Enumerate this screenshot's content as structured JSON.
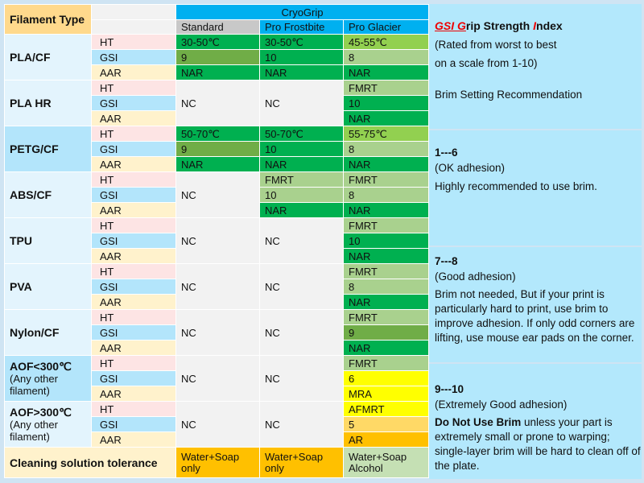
{
  "header": {
    "filament_type": "Filament Type",
    "brand": "CryoGrip",
    "columns": [
      "Standard",
      "Pro Frostbite",
      "Pro Glacier"
    ],
    "column_colors": [
      "#c8c8c8",
      "#00b0f0",
      "#00b0f0"
    ]
  },
  "row_labels": [
    {
      "label": "HT",
      "color": "#fde4e4"
    },
    {
      "label": "GSI",
      "color": "#b3e5fb"
    },
    {
      "label": "AAR",
      "color": "#fff2cc"
    }
  ],
  "groups": [
    {
      "name": "PLA/CF",
      "bg": "#e3f4fd",
      "cols": [
        [
          {
            "v": "30-50℃",
            "c": "#00b050"
          },
          {
            "v": "9",
            "c": "#70ad47"
          },
          {
            "v": "NAR",
            "c": "#00b050"
          }
        ],
        [
          {
            "v": "30-50℃",
            "c": "#00b050"
          },
          {
            "v": "10",
            "c": "#00b050"
          },
          {
            "v": "NAR",
            "c": "#00b050"
          }
        ],
        [
          {
            "v": "45-55℃",
            "c": "#92d050"
          },
          {
            "v": "8",
            "c": "#a9d18e"
          },
          {
            "v": "NAR",
            "c": "#00b050"
          }
        ]
      ]
    },
    {
      "name": "PLA HR",
      "bg": "#e3f4fd",
      "cols": [
        "NC",
        "NC",
        [
          {
            "v": "FMRT",
            "c": "#a9d18e"
          },
          {
            "v": "10",
            "c": "#00b050"
          },
          {
            "v": "NAR",
            "c": "#00b050"
          }
        ]
      ]
    },
    {
      "name": "PETG/CF",
      "bg": "#b3e5fb",
      "cols": [
        [
          {
            "v": "50-70℃",
            "c": "#00b050"
          },
          {
            "v": "9",
            "c": "#70ad47"
          },
          {
            "v": "NAR",
            "c": "#00b050"
          }
        ],
        [
          {
            "v": "50-70℃",
            "c": "#00b050"
          },
          {
            "v": "10",
            "c": "#00b050"
          },
          {
            "v": "NAR",
            "c": "#00b050"
          }
        ],
        [
          {
            "v": "55-75℃",
            "c": "#92d050"
          },
          {
            "v": "8",
            "c": "#a9d18e"
          },
          {
            "v": "NAR",
            "c": "#00b050"
          }
        ]
      ]
    },
    {
      "name": "ABS/CF",
      "bg": "#e3f4fd",
      "cols": [
        "NC",
        [
          {
            "v": "FMRT",
            "c": "#a9d18e"
          },
          {
            "v": "10",
            "c": "#a9d18e"
          },
          {
            "v": "NAR",
            "c": "#00b050"
          }
        ],
        [
          {
            "v": "FMRT",
            "c": "#a9d18e"
          },
          {
            "v": "8",
            "c": "#a9d18e"
          },
          {
            "v": "NAR",
            "c": "#00b050"
          }
        ]
      ]
    },
    {
      "name": "TPU",
      "bg": "#e3f4fd",
      "cols": [
        "NC",
        "NC",
        [
          {
            "v": "FMRT",
            "c": "#a9d18e"
          },
          {
            "v": "10",
            "c": "#00b050"
          },
          {
            "v": "NAR",
            "c": "#00b050"
          }
        ]
      ]
    },
    {
      "name": "PVA",
      "bg": "#e3f4fd",
      "cols": [
        "NC",
        "NC",
        [
          {
            "v": "FMRT",
            "c": "#a9d18e"
          },
          {
            "v": "8",
            "c": "#a9d18e"
          },
          {
            "v": "NAR",
            "c": "#00b050"
          }
        ]
      ]
    },
    {
      "name": "Nylon/CF",
      "bg": "#e3f4fd",
      "cols": [
        "NC",
        "NC",
        [
          {
            "v": "FMRT",
            "c": "#a9d18e"
          },
          {
            "v": "9",
            "c": "#70ad47"
          },
          {
            "v": "NAR",
            "c": "#00b050"
          }
        ]
      ]
    },
    {
      "name": "AOF<300℃",
      "sub": "(Any other filament)",
      "bg": "#b3e5fb",
      "cols": [
        "NC",
        "NC",
        [
          {
            "v": "FMRT",
            "c": "#a9d18e"
          },
          {
            "v": "6",
            "c": "#ffff00"
          },
          {
            "v": "MRA",
            "c": "#ffff00"
          }
        ]
      ]
    },
    {
      "name": "AOF>300℃",
      "sub": "(Any other filament)",
      "bg": "#e3f4fd",
      "cols": [
        "NC",
        "NC",
        [
          {
            "v": "AFMRT",
            "c": "#ffff00"
          },
          {
            "v": "5",
            "c": "#ffd966"
          },
          {
            "v": "AR",
            "c": "#ffc000"
          }
        ]
      ]
    }
  ],
  "cleaning": {
    "label": "Cleaning solution tolerance",
    "values": [
      {
        "v": "Water+Soap only",
        "c": "#ffc000"
      },
      {
        "v": "Water+Soap only",
        "c": "#ffc000"
      },
      {
        "v": "Water+Soap Alcohol",
        "c": "#c5e0b4"
      }
    ]
  },
  "legend": {
    "title_red_1": "GSI G",
    "title_1": "rip Strength ",
    "title_red_2": "I",
    "title_2": "ndex",
    "rated": "(Rated from worst to best",
    "scale": "on a scale from 1-10)",
    "brim_heading": "Brim Setting Recommendation",
    "range1": "1---6",
    "range1_desc": "(OK adhesion)",
    "range1_text": "Highly recommended to use brim.",
    "range2": "7---8",
    "range2_desc": "(Good adhesion)",
    "range2_text": "Brim not needed, But if your print is particularly hard to print, use brim to improve adhesion. If only odd corners are lifting, use mouse ear pads on the corner.",
    "range3": "9---10",
    "range3_desc": "(Extremely Good adhesion)",
    "range3_bold": "Do Not Use Brim",
    "range3_text": " unless your part is extremely small or prone to warping; single-layer brim will be hard to clean off of the plate."
  }
}
